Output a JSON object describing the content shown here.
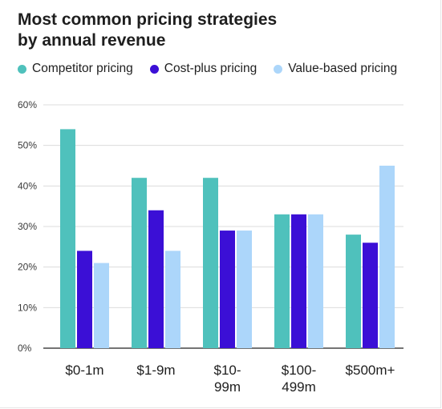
{
  "chart_data": {
    "type": "bar",
    "title_lines": [
      "Most common pricing strategies",
      "by annual revenue"
    ],
    "categories": [
      [
        "$0-1m"
      ],
      [
        "$1-9m"
      ],
      [
        "$10-",
        "99m"
      ],
      [
        "$100-",
        "499m"
      ],
      [
        "$500m+"
      ]
    ],
    "series": [
      {
        "name": "Competitor pricing",
        "color": "#4fc1bc",
        "values": [
          54,
          42,
          42,
          33,
          28
        ]
      },
      {
        "name": "Cost-plus pricing",
        "color": "#3b0fd6",
        "values": [
          24,
          34,
          29,
          33,
          26
        ]
      },
      {
        "name": "Value-based pricing",
        "color": "#acd6fa",
        "values": [
          21,
          24,
          29,
          33,
          45
        ]
      }
    ],
    "ylim": [
      0,
      60
    ],
    "yticks": [
      {
        "value": 0,
        "label": "0%"
      },
      {
        "value": 10,
        "label": "10%"
      },
      {
        "value": 20,
        "label": "20%"
      },
      {
        "value": 30,
        "label": "30%"
      },
      {
        "value": 40,
        "label": "40%"
      },
      {
        "value": 50,
        "label": "50%"
      },
      {
        "value": 60,
        "label": "60%"
      }
    ],
    "grid": true,
    "legend_position": "top-left"
  }
}
